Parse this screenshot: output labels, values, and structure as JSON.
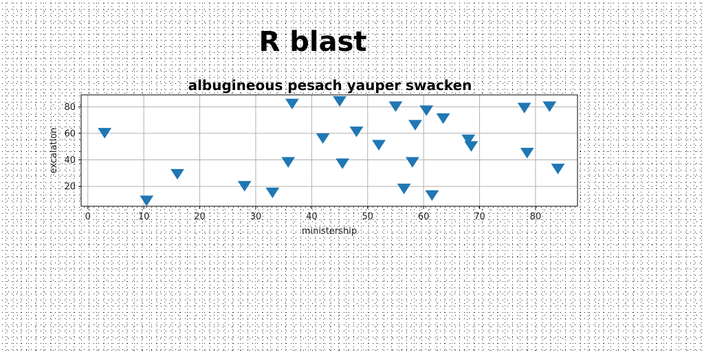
{
  "suptitle": "R blast",
  "chart_data": {
    "type": "scatter",
    "title": "albugineous pesach yauper swacken",
    "xlabel": "ministership",
    "ylabel": "excalation",
    "xlim": [
      -1.2,
      87.5
    ],
    "ylim": [
      5,
      89
    ],
    "xticks": [
      0,
      10,
      20,
      30,
      40,
      50,
      60,
      70,
      80
    ],
    "yticks": [
      20,
      40,
      60,
      80
    ],
    "grid": true,
    "marker": "triangle-down",
    "color": "#1f77b4",
    "series": [
      {
        "points": [
          [
            3,
            61
          ],
          [
            10.5,
            10
          ],
          [
            16,
            30
          ],
          [
            28,
            21
          ],
          [
            33,
            16
          ],
          [
            35.8,
            39
          ],
          [
            36.5,
            83
          ],
          [
            42,
            57
          ],
          [
            45,
            85
          ],
          [
            45.5,
            38
          ],
          [
            48,
            62
          ],
          [
            52,
            52
          ],
          [
            55,
            81
          ],
          [
            56.5,
            19
          ],
          [
            58,
            39
          ],
          [
            58.5,
            67
          ],
          [
            60.5,
            78
          ],
          [
            61.5,
            14
          ],
          [
            63.5,
            72
          ],
          [
            68,
            56
          ],
          [
            68.5,
            51
          ],
          [
            78,
            80
          ],
          [
            78.5,
            46
          ],
          [
            82.5,
            81
          ],
          [
            84,
            34
          ]
        ]
      }
    ]
  }
}
